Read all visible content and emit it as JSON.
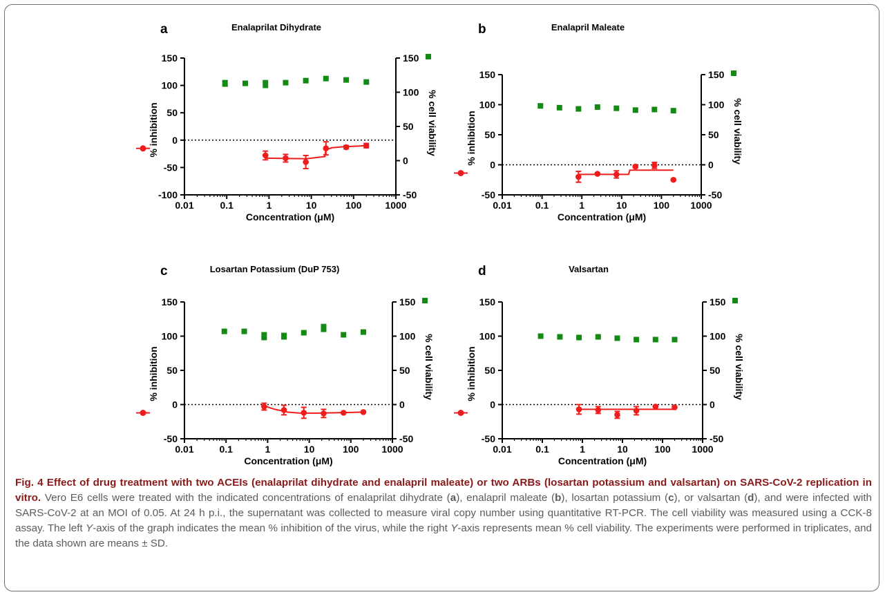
{
  "colors": {
    "inhibition": "#ee1c1c",
    "viability": "#138a13",
    "axis": "#000000",
    "caption_lead": "#8a1a1a",
    "caption_text": "#5b5b5b"
  },
  "chart_data": [
    {
      "panel": "a",
      "title": "Enalaprilat Dihydrate",
      "type": "scatter",
      "x_scale": "log",
      "xlim": [
        0.01,
        1000
      ],
      "xlabel": "Concentration (μM)",
      "xticks": [
        "0.01",
        "0.1",
        "1",
        "10",
        "100",
        "1000"
      ],
      "y_left": {
        "label": "% inhibition",
        "lim": [
          -100,
          150
        ],
        "ticks": [
          -100,
          -50,
          0,
          50,
          100,
          150
        ]
      },
      "y_right": {
        "label": "% cell viability",
        "lim": [
          -50,
          150
        ],
        "ticks": [
          -50,
          0,
          50,
          100,
          150
        ]
      },
      "zero_line": true,
      "inhibition": {
        "x": [
          0.823,
          2.47,
          7.41,
          22.2,
          66.7,
          200
        ],
        "y": [
          -28,
          -33,
          -40,
          -15,
          -13,
          -10
        ],
        "sd": [
          8,
          7,
          12,
          12,
          3,
          4
        ],
        "fit": {
          "x": [
            0.823,
            7.5,
            21,
            22,
            30,
            60,
            120,
            200
          ],
          "y": [
            -33,
            -34,
            -30,
            -18,
            -14,
            -12,
            -11,
            -10
          ]
        }
      },
      "viability": {
        "x": [
          0.091,
          0.274,
          0.823,
          2.47,
          7.41,
          22.2,
          66.7,
          200
        ],
        "y": [
          113,
          113,
          112,
          114,
          117,
          120,
          118,
          115
        ],
        "sd": [
          4,
          2,
          5,
          1,
          1,
          1,
          1,
          1
        ]
      }
    },
    {
      "panel": "b",
      "title": "Enalapril Maleate",
      "type": "scatter",
      "x_scale": "log",
      "xlim": [
        0.01,
        1000
      ],
      "xlabel": "Concentration (μM)",
      "xticks": [
        "0.01",
        "0.1",
        "1",
        "10",
        "100",
        "1000"
      ],
      "y_left": {
        "label": "% inhibition",
        "lim": [
          -50,
          150
        ],
        "ticks": [
          -50,
          0,
          50,
          100,
          150
        ]
      },
      "y_right": {
        "label": "% cell viability",
        "lim": [
          -50,
          150
        ],
        "ticks": [
          -50,
          0,
          50,
          100,
          150
        ]
      },
      "zero_line": true,
      "inhibition": {
        "x": [
          0.823,
          2.47,
          7.41,
          22.2,
          66.7,
          200
        ],
        "y": [
          -20,
          -15,
          -16,
          -3,
          -1,
          -25
        ],
        "sd": [
          9,
          1,
          6,
          2,
          5,
          1
        ],
        "fit": {
          "x": [
            0.823,
            15,
            16,
            200
          ],
          "y": [
            -16,
            -16,
            -9,
            -9
          ]
        }
      },
      "viability": {
        "x": [
          0.091,
          0.274,
          0.823,
          2.47,
          7.41,
          22.2,
          66.7,
          200
        ],
        "y": [
          98,
          95,
          93,
          96,
          94,
          91,
          92,
          90
        ],
        "sd": [
          1,
          1,
          1,
          1,
          1,
          1,
          1,
          1
        ]
      }
    },
    {
      "panel": "c",
      "title": "Losartan Potassium (DuP 753)",
      "type": "scatter",
      "x_scale": "log",
      "xlim": [
        0.01,
        1000
      ],
      "xlabel": "Concentration (μM)",
      "xticks": [
        "0.01",
        "0.1",
        "1",
        "10",
        "100",
        "1000"
      ],
      "y_left": {
        "label": "% inhibition",
        "lim": [
          -50,
          150
        ],
        "ticks": [
          -50,
          0,
          50,
          100,
          150
        ]
      },
      "y_right": {
        "label": "% cell viability",
        "lim": [
          -50,
          150
        ],
        "ticks": [
          -50,
          0,
          50,
          100,
          150
        ]
      },
      "zero_line": true,
      "inhibition": {
        "x": [
          0.823,
          2.47,
          7.41,
          22.2,
          66.7,
          200
        ],
        "y": [
          -3,
          -8,
          -12,
          -13,
          -12,
          -11
        ],
        "sd": [
          5,
          7,
          8,
          6,
          1,
          1
        ],
        "fit": {
          "x": [
            0.823,
            1.5,
            3,
            6,
            15,
            40,
            100,
            200
          ],
          "y": [
            -2,
            -7,
            -11,
            -12.5,
            -12.5,
            -12,
            -11.5,
            -11
          ]
        }
      },
      "viability": {
        "x": [
          0.091,
          0.274,
          0.823,
          2.47,
          7.41,
          22.2,
          66.7,
          200
        ],
        "y": [
          107,
          107,
          100,
          100,
          105,
          112,
          102,
          106
        ],
        "sd": [
          1,
          1,
          5,
          4,
          1,
          5,
          1,
          1
        ]
      }
    },
    {
      "panel": "d",
      "title": "Valsartan",
      "type": "scatter",
      "x_scale": "log",
      "xlim": [
        0.01,
        1000
      ],
      "xlabel": "Concentration (μM)",
      "xticks": [
        "0.01",
        "0.1",
        "1",
        "10",
        "100",
        "1000"
      ],
      "y_left": {
        "label": "% inhibition",
        "lim": [
          -50,
          150
        ],
        "ticks": [
          -50,
          0,
          50,
          100,
          150
        ]
      },
      "y_right": {
        "label": "% cell viability",
        "lim": [
          -50,
          150
        ],
        "ticks": [
          -50,
          0,
          50,
          100,
          150
        ]
      },
      "zero_line": true,
      "inhibition": {
        "x": [
          0.823,
          2.47,
          7.41,
          22.2,
          66.7,
          200
        ],
        "y": [
          -7,
          -8,
          -15,
          -9,
          -3,
          -4
        ],
        "sd": [
          7,
          5,
          5,
          6,
          1,
          1
        ],
        "fit": {
          "x": [
            0.823,
            200
          ],
          "y": [
            -7,
            -7
          ]
        }
      },
      "viability": {
        "x": [
          0.091,
          0.274,
          0.823,
          2.47,
          7.41,
          22.2,
          66.7,
          200
        ],
        "y": [
          100,
          99,
          98,
          99,
          97,
          95,
          95,
          95
        ],
        "sd": [
          1,
          1,
          1,
          1,
          1,
          1,
          1,
          1
        ]
      }
    }
  ],
  "caption": {
    "lead": "Fig. 4 Effect of drug treatment with two ACEIs (enalaprilat dihydrate and enalapril maleate) or two ARBs (losartan potassium and valsartan) on SARS-CoV-2 replication in vitro.",
    "p1": " Vero E6 cells were treated with the indicated concentrations of enalaprilat dihydrate (",
    "a": "a",
    "p2": "), enalapril maleate (",
    "b": "b",
    "p3": "), losartan potassium (",
    "c": "c",
    "p4": "), or valsartan (",
    "d": "d",
    "p5": "), and were infected with SARS-CoV-2 at an MOI of 0.05. At 24 h p.i., the supernatant was collected to measure viral copy number using quantitative RT-PCR. The cell viability was measured using a CCK-8 assay. The left ",
    "y1": "Y",
    "p6": "-axis of the graph indicates the mean % inhibition of the virus, while the right ",
    "y2": "Y",
    "p7": "-axis represents mean % cell viability. The experiments were performed in triplicates, and the data shown are means ± SD."
  }
}
